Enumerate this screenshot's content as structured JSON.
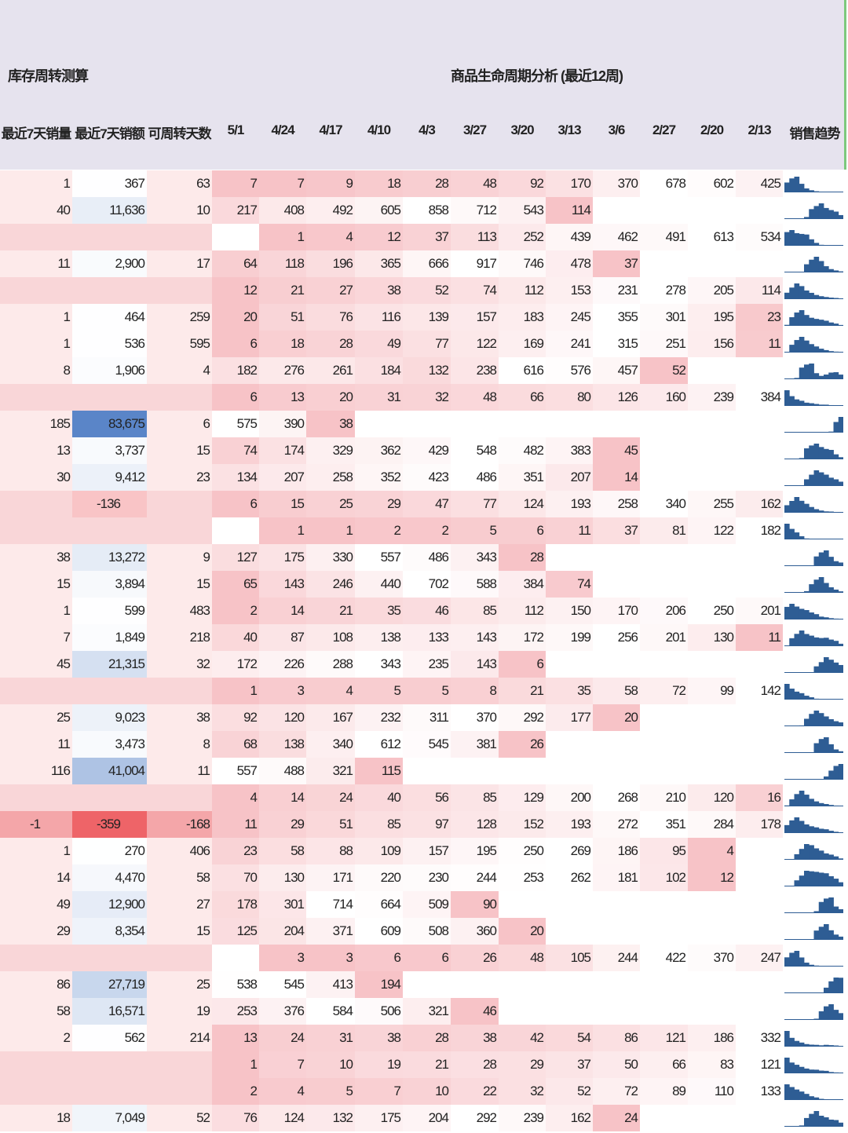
{
  "header": {
    "left_title": "库存周转测算",
    "right_title": "商品生命周期分析 (最近12周)",
    "columns": [
      "最近7天销量",
      "最近7天销额",
      "可周转天数",
      "5/1",
      "4/24",
      "4/17",
      "4/10",
      "4/3",
      "3/27",
      "3/20",
      "3/13",
      "3/6",
      "2/27",
      "2/20",
      "2/13",
      "销售趋势"
    ]
  },
  "table": {
    "rows": [
      [
        1,
        367,
        63,
        7,
        7,
        9,
        18,
        28,
        48,
        92,
        170,
        370,
        678,
        602,
        425
      ],
      [
        40,
        {
          "value": 11636,
          "label": "11,636"
        },
        10,
        217,
        408,
        492,
        605,
        858,
        712,
        543,
        114,
        null,
        null,
        null,
        null
      ],
      [
        null,
        null,
        null,
        null,
        1,
        4,
        12,
        37,
        113,
        252,
        439,
        462,
        491,
        613,
        534
      ],
      [
        11,
        {
          "value": 2900,
          "label": "2,900"
        },
        17,
        64,
        118,
        196,
        365,
        666,
        917,
        746,
        478,
        37,
        null,
        null,
        null
      ],
      [
        null,
        null,
        null,
        12,
        21,
        27,
        38,
        52,
        74,
        112,
        153,
        231,
        278,
        205,
        114
      ],
      [
        1,
        464,
        259,
        20,
        51,
        76,
        116,
        139,
        157,
        183,
        245,
        355,
        301,
        195,
        23
      ],
      [
        1,
        536,
        595,
        6,
        18,
        28,
        49,
        77,
        122,
        169,
        241,
        315,
        251,
        156,
        11
      ],
      [
        8,
        {
          "value": 1906,
          "label": "1,906"
        },
        4,
        182,
        276,
        261,
        184,
        132,
        238,
        616,
        576,
        457,
        52,
        null,
        null
      ],
      [
        null,
        null,
        null,
        6,
        13,
        20,
        31,
        32,
        48,
        66,
        80,
        126,
        160,
        239,
        384
      ],
      [
        185,
        {
          "value": 83675,
          "label": "83,675"
        },
        6,
        575,
        390,
        38,
        null,
        null,
        null,
        null,
        null,
        null,
        null,
        null,
        null
      ],
      [
        13,
        {
          "value": 3737,
          "label": "3,737"
        },
        15,
        74,
        174,
        329,
        362,
        429,
        548,
        482,
        383,
        45,
        null,
        null,
        null
      ],
      [
        30,
        {
          "value": 9412,
          "label": "9,412"
        },
        23,
        134,
        207,
        258,
        352,
        423,
        486,
        351,
        207,
        14,
        null,
        null,
        null
      ],
      [
        null,
        -136,
        null,
        6,
        15,
        25,
        29,
        47,
        77,
        124,
        193,
        258,
        340,
        255,
        162
      ],
      [
        null,
        null,
        null,
        null,
        1,
        1,
        2,
        2,
        5,
        6,
        11,
        37,
        81,
        122,
        182
      ],
      [
        38,
        {
          "value": 13272,
          "label": "13,272"
        },
        9,
        127,
        175,
        330,
        557,
        486,
        343,
        28,
        null,
        null,
        null,
        null,
        null
      ],
      [
        15,
        {
          "value": 3894,
          "label": "3,894"
        },
        15,
        65,
        143,
        246,
        440,
        702,
        588,
        384,
        74,
        null,
        null,
        null,
        null
      ],
      [
        1,
        599,
        483,
        2,
        14,
        21,
        35,
        46,
        85,
        112,
        150,
        170,
        206,
        250,
        201
      ],
      [
        7,
        {
          "value": 1849,
          "label": "1,849"
        },
        218,
        40,
        87,
        108,
        138,
        133,
        143,
        172,
        199,
        256,
        201,
        130,
        11
      ],
      [
        45,
        {
          "value": 21315,
          "label": "21,315"
        },
        32,
        172,
        226,
        288,
        343,
        235,
        143,
        6,
        null,
        null,
        null,
        null,
        null
      ],
      [
        null,
        null,
        null,
        1,
        3,
        4,
        5,
        5,
        8,
        21,
        35,
        58,
        72,
        99,
        142
      ],
      [
        25,
        {
          "value": 9023,
          "label": "9,023"
        },
        38,
        92,
        120,
        167,
        232,
        311,
        370,
        292,
        177,
        20,
        null,
        null,
        null
      ],
      [
        11,
        {
          "value": 3473,
          "label": "3,473"
        },
        8,
        68,
        138,
        340,
        612,
        545,
        381,
        26,
        null,
        null,
        null,
        null,
        null
      ],
      [
        116,
        {
          "value": 41004,
          "label": "41,004"
        },
        11,
        557,
        488,
        321,
        115,
        null,
        null,
        null,
        null,
        null,
        null,
        null,
        null
      ],
      [
        null,
        null,
        null,
        4,
        14,
        24,
        40,
        56,
        85,
        129,
        200,
        268,
        210,
        120,
        16
      ],
      [
        -1,
        -359,
        -168,
        11,
        29,
        51,
        85,
        97,
        128,
        152,
        193,
        272,
        351,
        284,
        178
      ],
      [
        1,
        270,
        406,
        23,
        58,
        88,
        109,
        157,
        195,
        250,
        269,
        186,
        95,
        4,
        null
      ],
      [
        14,
        {
          "value": 4470,
          "label": "4,470"
        },
        58,
        70,
        130,
        171,
        220,
        230,
        244,
        253,
        262,
        181,
        102,
        12,
        null
      ],
      [
        49,
        {
          "value": 12900,
          "label": "12,900"
        },
        27,
        178,
        301,
        714,
        664,
        509,
        90,
        null,
        null,
        null,
        null,
        null,
        null
      ],
      [
        29,
        {
          "value": 8354,
          "label": "8,354"
        },
        15,
        125,
        204,
        371,
        609,
        508,
        360,
        20,
        null,
        null,
        null,
        null,
        null
      ],
      [
        null,
        null,
        null,
        null,
        3,
        3,
        6,
        6,
        26,
        48,
        105,
        244,
        422,
        370,
        247
      ],
      [
        86,
        {
          "value": 27719,
          "label": "27,719"
        },
        25,
        538,
        545,
        413,
        194,
        null,
        null,
        null,
        null,
        null,
        null,
        null,
        null
      ],
      [
        58,
        {
          "value": 16571,
          "label": "16,571"
        },
        19,
        253,
        376,
        584,
        506,
        321,
        46,
        null,
        null,
        null,
        null,
        null,
        null
      ],
      [
        2,
        562,
        214,
        13,
        24,
        31,
        38,
        28,
        38,
        42,
        54,
        86,
        121,
        186,
        332
      ],
      [
        null,
        null,
        null,
        1,
        7,
        10,
        19,
        21,
        28,
        29,
        37,
        50,
        66,
        83,
        121
      ],
      [
        null,
        null,
        null,
        2,
        4,
        5,
        7,
        10,
        22,
        32,
        52,
        72,
        89,
        110,
        133
      ],
      [
        18,
        {
          "value": 7049,
          "label": "7,049"
        },
        52,
        76,
        124,
        132,
        175,
        204,
        292,
        239,
        162,
        24,
        null,
        null,
        null
      ]
    ]
  }
}
